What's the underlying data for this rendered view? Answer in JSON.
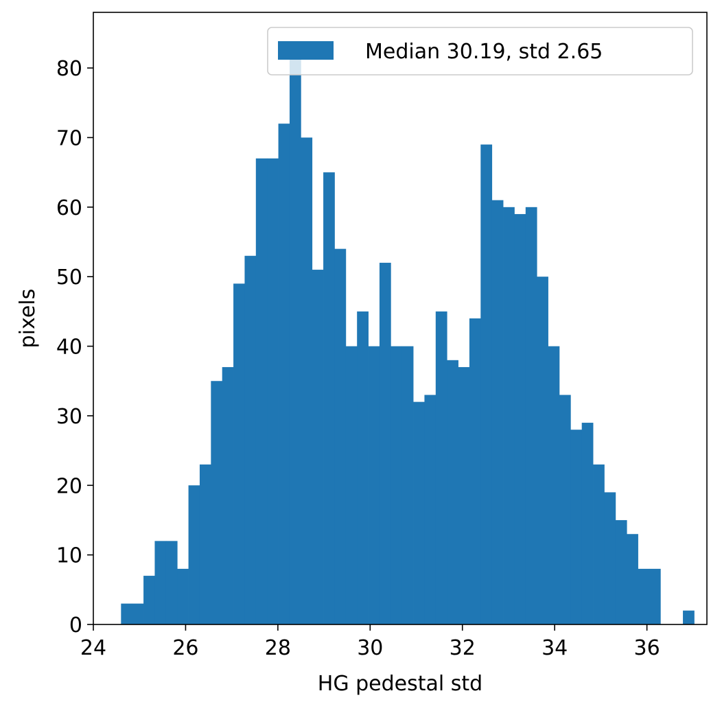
{
  "chart_data": {
    "type": "bar",
    "subtype": "histogram",
    "xlabel": "HG pedestal std",
    "ylabel": "pixels",
    "xlim": [
      24,
      37.3
    ],
    "ylim": [
      0,
      88
    ],
    "xticks": [
      24,
      26,
      28,
      30,
      32,
      34,
      36
    ],
    "yticks": [
      0,
      10,
      20,
      30,
      40,
      50,
      60,
      70,
      80
    ],
    "bin_start": 24.6,
    "bin_width": 0.2436,
    "counts": [
      3,
      3,
      7,
      12,
      12,
      8,
      20,
      23,
      35,
      37,
      49,
      53,
      67,
      67,
      72,
      82,
      70,
      51,
      65,
      54,
      40,
      45,
      40,
      52,
      40,
      40,
      32,
      33,
      45,
      38,
      37,
      44,
      69,
      61,
      60,
      59,
      60,
      50,
      40,
      33,
      28,
      29,
      23,
      19,
      15,
      13,
      8,
      8,
      0,
      0,
      2
    ],
    "bar_color": "#1f77b4",
    "grid": false,
    "legend_position": "top-right",
    "series": [
      {
        "name": "Median 30.19, std 2.65",
        "color": "#1f77b4"
      }
    ]
  }
}
